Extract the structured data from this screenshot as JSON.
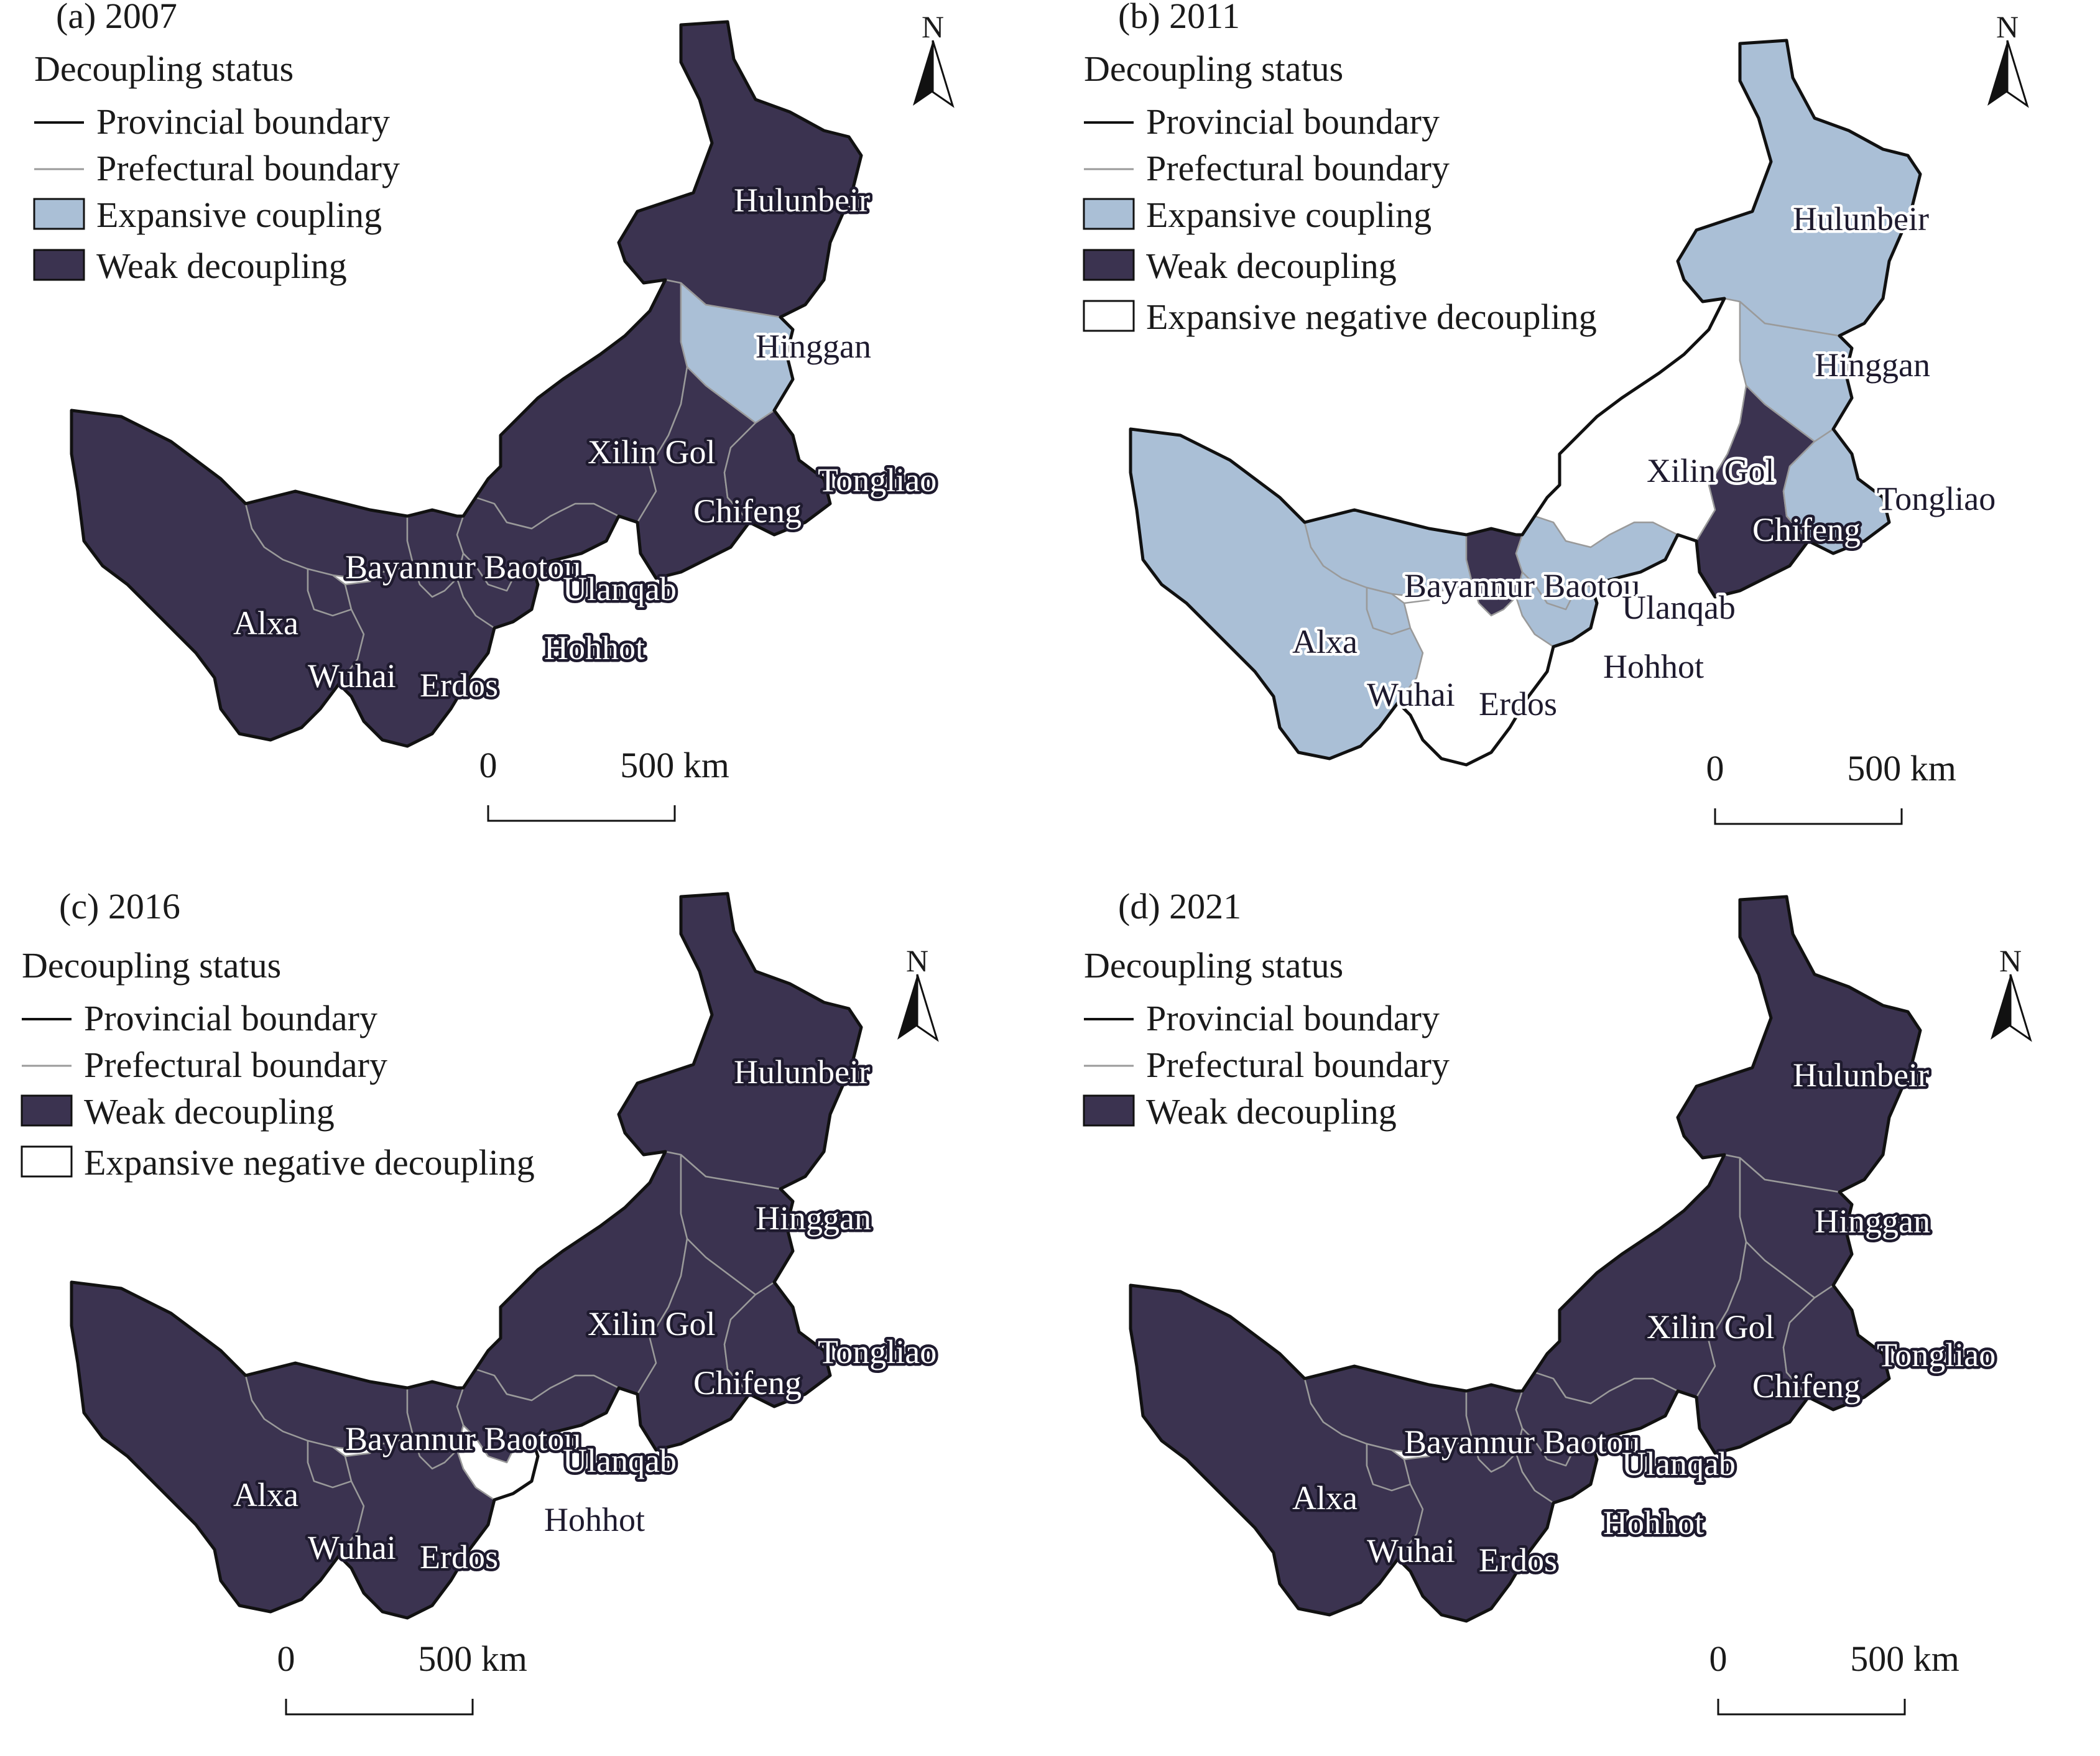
{
  "colors": {
    "weak_decoupling": "#3b3350",
    "expansive_coupling": "#aabfd6",
    "expansive_negative_decoupling": "#ffffff",
    "provincial_boundary": "#111111",
    "prefectural_boundary": "#9a9a9a"
  },
  "legend_labels": {
    "heading": "Decoupling status",
    "provincial": "Provincial boundary",
    "prefectural": "Prefectural boundary",
    "expansive_coupling": "Expansive coupling",
    "weak_decoupling": "Weak decoupling",
    "expansive_negative": "Expansive negative decoupling"
  },
  "north_label": "N",
  "scale": {
    "zero": "0",
    "end": "500 km"
  },
  "panels": [
    {
      "title": "(a) 2007",
      "legend": [
        "provincial",
        "prefectural",
        "expansive_coupling",
        "weak_decoupling"
      ],
      "status": {
        "Hulunbeir": "weak_decoupling",
        "Hinggan": "expansive_coupling",
        "Tongliao": "weak_decoupling",
        "Chifeng": "weak_decoupling",
        "Xilin Gol": "weak_decoupling",
        "Ulanqab": "weak_decoupling",
        "Hohhot": "weak_decoupling",
        "Baotou": "weak_decoupling",
        "Bayannur": "weak_decoupling",
        "Erdos": "weak_decoupling",
        "Wuhai": "weak_decoupling",
        "Alxa": "weak_decoupling"
      },
      "labels": [
        {
          "text": "Hulunbeir",
          "region": "Hulunbeir"
        },
        {
          "text": "Hinggan",
          "region": "Hinggan"
        },
        {
          "text": "Xilin Gol",
          "region": "Xilin Gol"
        },
        {
          "text": "Tongliao",
          "region": "Tongliao"
        },
        {
          "text": "Chifeng",
          "region": "Chifeng"
        },
        {
          "text": "Bayannur Baotou",
          "region": "Bayannur"
        },
        {
          "text": "Ulanqab",
          "region": "Ulanqab"
        },
        {
          "text": "Alxa",
          "region": "Alxa"
        },
        {
          "text": "Hohhot",
          "region": "Hohhot"
        },
        {
          "text": "Wuhai",
          "region": "Wuhai"
        },
        {
          "text": "Erdos",
          "region": "Erdos"
        }
      ]
    },
    {
      "title": "(b) 2011",
      "legend": [
        "provincial",
        "prefectural",
        "expansive_coupling",
        "weak_decoupling",
        "expansive_negative"
      ],
      "status": {
        "Hulunbeir": "expansive_coupling",
        "Hinggan": "expansive_coupling",
        "Tongliao": "expansive_coupling",
        "Chifeng": "weak_decoupling",
        "Xilin Gol": "expansive_negative_decoupling",
        "Ulanqab": "expansive_coupling",
        "Hohhot": "expansive_coupling",
        "Baotou": "weak_decoupling",
        "Bayannur": "expansive_coupling",
        "Erdos": "expansive_negative_decoupling",
        "Wuhai": "expansive_coupling",
        "Alxa": "expansive_coupling"
      },
      "labels": [
        {
          "text": "Hulunbeir",
          "region": "Hulunbeir"
        },
        {
          "text": "Hinggan",
          "region": "Hinggan"
        },
        {
          "text": "Xilin Gol",
          "region": "Xilin Gol"
        },
        {
          "text": "Tongliao",
          "region": "Tongliao"
        },
        {
          "text": "Chifeng",
          "region": "Chifeng"
        },
        {
          "text": "Bayannur Baotou",
          "region": "Bayannur"
        },
        {
          "text": "Ulanqab",
          "region": "Ulanqab"
        },
        {
          "text": "Alxa",
          "region": "Alxa"
        },
        {
          "text": "Hohhot",
          "region": "Hohhot"
        },
        {
          "text": "Wuhai",
          "region": "Wuhai"
        },
        {
          "text": "Erdos",
          "region": "Erdos"
        }
      ]
    },
    {
      "title": "(c) 2016",
      "legend": [
        "provincial",
        "prefectural",
        "weak_decoupling",
        "expansive_negative"
      ],
      "status": {
        "Hulunbeir": "weak_decoupling",
        "Hinggan": "weak_decoupling",
        "Tongliao": "weak_decoupling",
        "Chifeng": "weak_decoupling",
        "Xilin Gol": "weak_decoupling",
        "Ulanqab": "weak_decoupling",
        "Hohhot": "expansive_negative_decoupling",
        "Baotou": "weak_decoupling",
        "Bayannur": "weak_decoupling",
        "Erdos": "weak_decoupling",
        "Wuhai": "weak_decoupling",
        "Alxa": "weak_decoupling"
      },
      "labels": [
        {
          "text": "Hulunbeir",
          "region": "Hulunbeir"
        },
        {
          "text": "Hinggan",
          "region": "Hinggan"
        },
        {
          "text": "Xilin Gol",
          "region": "Xilin Gol"
        },
        {
          "text": "Tongliao",
          "region": "Tongliao"
        },
        {
          "text": "Chifeng",
          "region": "Chifeng"
        },
        {
          "text": "Bayannur Baotou",
          "region": "Bayannur"
        },
        {
          "text": "Ulanqab",
          "region": "Ulanqab"
        },
        {
          "text": "Alxa",
          "region": "Alxa"
        },
        {
          "text": "Hohhot",
          "region": "Hohhot"
        },
        {
          "text": "Wuhai",
          "region": "Wuhai"
        },
        {
          "text": "Erdos",
          "region": "Erdos"
        }
      ]
    },
    {
      "title": "(d) 2021",
      "legend": [
        "provincial",
        "prefectural",
        "weak_decoupling"
      ],
      "status": {
        "Hulunbeir": "weak_decoupling",
        "Hinggan": "weak_decoupling",
        "Tongliao": "weak_decoupling",
        "Chifeng": "weak_decoupling",
        "Xilin Gol": "weak_decoupling",
        "Ulanqab": "weak_decoupling",
        "Hohhot": "weak_decoupling",
        "Baotou": "weak_decoupling",
        "Bayannur": "weak_decoupling",
        "Erdos": "weak_decoupling",
        "Wuhai": "weak_decoupling",
        "Alxa": "weak_decoupling"
      },
      "labels": [
        {
          "text": "Hulunbeir",
          "region": "Hulunbeir"
        },
        {
          "text": "Hinggan",
          "region": "Hinggan"
        },
        {
          "text": "Xilin Gol",
          "region": "Xilin Gol"
        },
        {
          "text": "Tongliao",
          "region": "Tongliao"
        },
        {
          "text": "Chifeng",
          "region": "Chifeng"
        },
        {
          "text": "Bayannur Baotou",
          "region": "Bayannur"
        },
        {
          "text": "Ulanqab",
          "region": "Ulanqab"
        },
        {
          "text": "Alxa",
          "region": "Alxa"
        },
        {
          "text": "Hohhot",
          "region": "Hohhot"
        },
        {
          "text": "Wuhai",
          "region": "Wuhai"
        },
        {
          "text": "Erdos",
          "region": "Erdos"
        }
      ]
    }
  ]
}
